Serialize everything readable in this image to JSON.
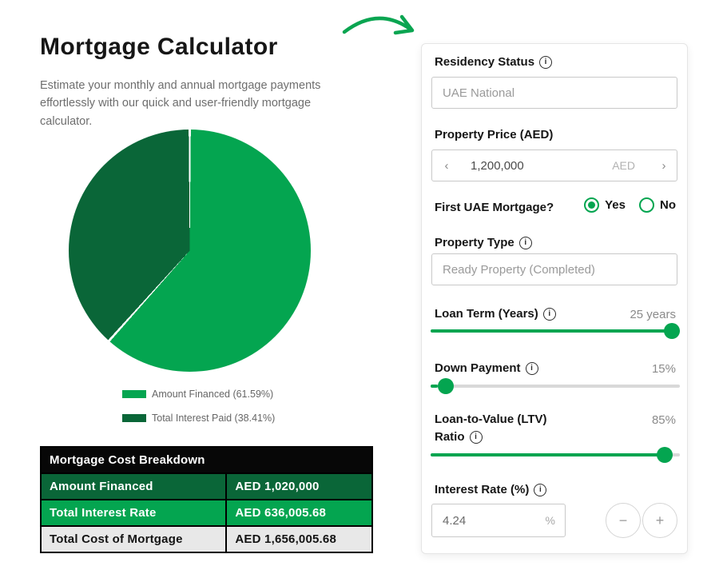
{
  "colors": {
    "green": "#04A550",
    "dark_green": "#0A6638",
    "table_header_bg": "#070707",
    "row_gray": "#e8e8e8"
  },
  "header": {
    "title": "Mortgage Calculator",
    "description": "Estimate your monthly and annual mortgage payments effortlessly with our quick and user-friendly mortgage calculator."
  },
  "chart_data": {
    "type": "pie",
    "slices": [
      {
        "label": "Amount Financed",
        "percent": 61.59,
        "color": "#04A550"
      },
      {
        "label": "Total Interest Paid",
        "percent": 38.41,
        "color": "#0A6638"
      }
    ],
    "legend": [
      "Amount Financed (61.59%)",
      "Total Interest Paid (38.41%)"
    ],
    "legend_position": "bottom",
    "start_angle_deg": 0,
    "direction": "clockwise"
  },
  "table": {
    "title": "Mortgage Cost Breakdown",
    "rows": [
      {
        "label": "Amount Financed",
        "value": "AED 1,020,000"
      },
      {
        "label": "Total Interest Rate",
        "value": "AED 636,005.68"
      },
      {
        "label": "Total Cost of Mortgage",
        "value": "AED 1,656,005.68"
      }
    ]
  },
  "form": {
    "residency": {
      "label": "Residency Status",
      "value": "UAE National"
    },
    "property_price": {
      "label": "Property Price (AED)",
      "value": "1,200,000",
      "unit": "AED",
      "dec_label": "‹",
      "inc_label": "›"
    },
    "first_mortgage": {
      "label": "First UAE Mortgage?",
      "options": [
        "Yes",
        "No"
      ],
      "selected": "Yes"
    },
    "property_type": {
      "label": "Property Type",
      "value": "Ready Property (Completed)"
    },
    "loan_term": {
      "label": "Loan Term (Years)",
      "value_label": "25 years",
      "percent": 100
    },
    "down_payment": {
      "label": "Down Payment",
      "value_label": "15%",
      "percent": 3
    },
    "ltv": {
      "label_line1": "Loan-to-Value (LTV)",
      "label_line2": "Ratio",
      "value_label": "85%",
      "percent": 97
    },
    "interest_rate": {
      "label": "Interest Rate (%)",
      "value": "4.24",
      "unit": "%",
      "minus_label": "−",
      "plus_label": "+"
    }
  }
}
